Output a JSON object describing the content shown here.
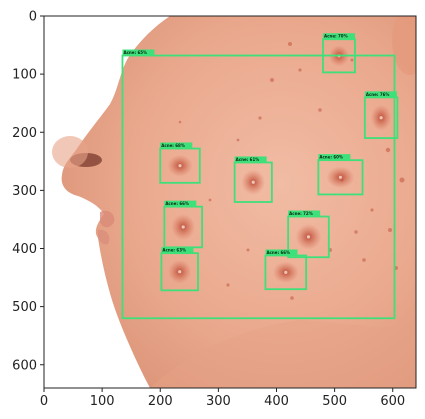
{
  "figure": {
    "axes": {
      "x_ticks": [
        0,
        100,
        200,
        300,
        400,
        500,
        600
      ],
      "y_ticks": [
        0,
        100,
        200,
        300,
        400,
        500,
        600
      ],
      "x_range": [
        0,
        640
      ],
      "y_range": [
        640,
        0
      ]
    },
    "colors": {
      "box": "#3ee07a",
      "label_bg": "#3ee07a",
      "skin_light": "#f3c9b4",
      "skin_mid": "#e9a88c",
      "skin_shadow": "#d3866a",
      "lesion": "#c6513d"
    },
    "face_region": {
      "label": "Acne: 65%",
      "x": [
        135,
        603
      ],
      "y": [
        68,
        520
      ]
    },
    "detections": [
      {
        "label": "Acne: 70%",
        "x": [
          480,
          535
        ],
        "y": [
          40,
          97
        ]
      },
      {
        "label": "Acne: 76%",
        "x": [
          552,
          608
        ],
        "y": [
          140,
          210
        ]
      },
      {
        "label": "Acne: 68%",
        "x": [
          200,
          268
        ],
        "y": [
          228,
          287
        ]
      },
      {
        "label": "Acne: 61%",
        "x": [
          328,
          392
        ],
        "y": [
          252,
          320
        ]
      },
      {
        "label": "Acne: 60%",
        "x": [
          472,
          548
        ],
        "y": [
          248,
          307
        ]
      },
      {
        "label": "Acne: 66%",
        "x": [
          207,
          272
        ],
        "y": [
          328,
          398
        ]
      },
      {
        "label": "Acne: 72%",
        "x": [
          420,
          490
        ],
        "y": [
          345,
          415
        ]
      },
      {
        "label": "Acne: 63%",
        "x": [
          202,
          265
        ],
        "y": [
          408,
          472
        ]
      },
      {
        "label": "Acne: 66%",
        "x": [
          381,
          451
        ],
        "y": [
          412,
          470
        ]
      }
    ]
  }
}
